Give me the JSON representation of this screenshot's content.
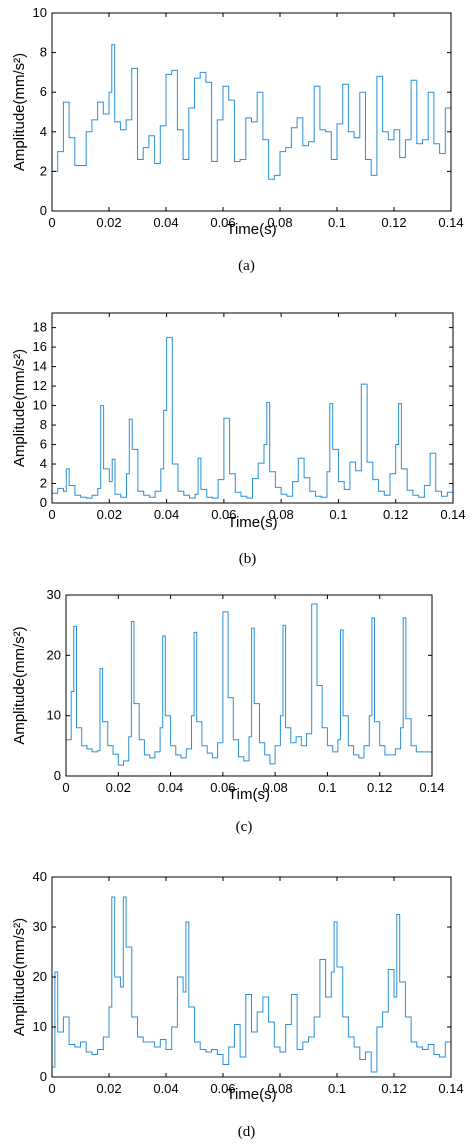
{
  "colors": {
    "line": "#2b8fd6",
    "axis": "#000000"
  },
  "chart_data": [
    {
      "type": "line",
      "caption": "(a)",
      "xlabel": "Time(s)",
      "ylabel": "Amplitude(mm/s²)",
      "xlim": [
        0,
        0.14
      ],
      "ylim": [
        0,
        10
      ],
      "xticks": [
        "0",
        "0.02",
        "0.04",
        "0.06",
        "0.08",
        "0.1",
        "0.12",
        "0.14"
      ],
      "yticks": [
        "0",
        "2",
        "4",
        "6",
        "8",
        "10"
      ],
      "grid": false,
      "series": [
        {
          "x": [
            0,
            0.002,
            0.004,
            0.006,
            0.008,
            0.01,
            0.012,
            0.014,
            0.016,
            0.018,
            0.02,
            0.021,
            0.022,
            0.024,
            0.026,
            0.028,
            0.03,
            0.032,
            0.034,
            0.036,
            0.038,
            0.04,
            0.042,
            0.044,
            0.046,
            0.048,
            0.05,
            0.052,
            0.054,
            0.056,
            0.058,
            0.06,
            0.062,
            0.064,
            0.066,
            0.068,
            0.07,
            0.072,
            0.074,
            0.076,
            0.078,
            0.08,
            0.082,
            0.084,
            0.086,
            0.088,
            0.09,
            0.092,
            0.094,
            0.096,
            0.098,
            0.1,
            0.102,
            0.104,
            0.106,
            0.108,
            0.11,
            0.112,
            0.114,
            0.116,
            0.118,
            0.12,
            0.122,
            0.124,
            0.126,
            0.128,
            0.13,
            0.132,
            0.134,
            0.136,
            0.138,
            0.14
          ],
          "values": [
            2.0,
            3.0,
            5.5,
            3.7,
            2.3,
            2.3,
            4.0,
            4.6,
            5.5,
            4.9,
            6.0,
            8.4,
            4.5,
            4.1,
            4.6,
            7.2,
            2.6,
            3.2,
            3.8,
            2.4,
            4.3,
            6.9,
            7.1,
            4.1,
            2.6,
            5.2,
            6.7,
            7.0,
            6.5,
            2.5,
            4.6,
            6.3,
            5.6,
            2.5,
            2.6,
            4.7,
            4.5,
            6.0,
            3.6,
            1.6,
            1.8,
            3.0,
            3.2,
            4.2,
            4.7,
            3.3,
            3.5,
            6.3,
            4.1,
            4.0,
            2.6,
            4.4,
            6.4,
            4.0,
            3.7,
            6.0,
            2.6,
            1.8,
            6.8,
            4.0,
            3.6,
            4.1,
            2.7,
            3.6,
            6.6,
            3.4,
            3.6,
            6.0,
            3.4,
            2.9,
            5.2,
            3.9
          ]
        }
      ]
    },
    {
      "type": "line",
      "caption": "(b)",
      "xlabel": "Time(s)",
      "ylabel": "Amplitude(mm/s²)",
      "xlim": [
        0,
        0.14
      ],
      "ylim": [
        0,
        19.5
      ],
      "xticks": [
        "0",
        "0.02",
        "0.04",
        "0.06",
        "0.08",
        "0.1",
        "0.12",
        "0.14"
      ],
      "yticks": [
        "0",
        "2",
        "4",
        "6",
        "8",
        "10",
        "12",
        "14",
        "16",
        "18"
      ],
      "grid": false,
      "series": [
        {
          "x": [
            0,
            0.002,
            0.004,
            0.005,
            0.006,
            0.008,
            0.01,
            0.012,
            0.014,
            0.016,
            0.017,
            0.018,
            0.02,
            0.021,
            0.022,
            0.024,
            0.026,
            0.027,
            0.028,
            0.03,
            0.032,
            0.034,
            0.036,
            0.038,
            0.039,
            0.04,
            0.042,
            0.044,
            0.046,
            0.048,
            0.05,
            0.051,
            0.052,
            0.054,
            0.056,
            0.058,
            0.06,
            0.062,
            0.064,
            0.066,
            0.068,
            0.07,
            0.072,
            0.074,
            0.075,
            0.076,
            0.078,
            0.08,
            0.082,
            0.084,
            0.086,
            0.088,
            0.09,
            0.092,
            0.094,
            0.096,
            0.097,
            0.098,
            0.1,
            0.102,
            0.104,
            0.106,
            0.108,
            0.11,
            0.112,
            0.114,
            0.116,
            0.118,
            0.12,
            0.121,
            0.122,
            0.124,
            0.126,
            0.128,
            0.13,
            0.132,
            0.134,
            0.136,
            0.138,
            0.14
          ],
          "values": [
            1.0,
            1.5,
            1.2,
            3.5,
            1.8,
            0.8,
            0.6,
            0.5,
            0.8,
            1.5,
            10.0,
            3.5,
            2.2,
            4.5,
            0.9,
            0.6,
            3.0,
            8.6,
            5.5,
            1.2,
            0.8,
            0.6,
            1.2,
            3.5,
            9.5,
            17.0,
            4.0,
            1.2,
            0.8,
            0.5,
            0.9,
            4.6,
            1.4,
            0.6,
            0.5,
            2.4,
            8.7,
            3.0,
            1.1,
            0.7,
            0.5,
            2.5,
            4.1,
            6.0,
            10.3,
            3.2,
            1.6,
            0.9,
            0.7,
            2.2,
            4.6,
            2.6,
            1.2,
            0.7,
            0.6,
            3.2,
            10.2,
            5.5,
            2.2,
            1.4,
            4.2,
            3.3,
            12.2,
            4.2,
            2.4,
            1.2,
            0.8,
            3.0,
            6.0,
            10.2,
            3.5,
            1.3,
            0.8,
            0.6,
            1.8,
            5.1,
            1.2,
            0.7,
            1.1,
            1.4
          ]
        }
      ]
    },
    {
      "type": "line",
      "caption": "(c)",
      "xlabel": "Tim(s)",
      "ylabel": "Amplitude(mm/s²)",
      "xlim": [
        0,
        0.14
      ],
      "ylim": [
        0,
        30
      ],
      "xticks": [
        "0",
        "0.02",
        "0.04",
        "0.06",
        "0.08",
        "0.1",
        "0.12",
        "0.14"
      ],
      "yticks": [
        "0",
        "10",
        "20",
        "30"
      ],
      "grid": false,
      "series": [
        {
          "x": [
            0,
            0.002,
            0.003,
            0.004,
            0.006,
            0.008,
            0.01,
            0.012,
            0.013,
            0.014,
            0.016,
            0.018,
            0.02,
            0.022,
            0.024,
            0.025,
            0.026,
            0.028,
            0.03,
            0.032,
            0.034,
            0.036,
            0.037,
            0.038,
            0.04,
            0.042,
            0.044,
            0.046,
            0.048,
            0.049,
            0.05,
            0.052,
            0.054,
            0.056,
            0.058,
            0.06,
            0.062,
            0.064,
            0.066,
            0.068,
            0.07,
            0.071,
            0.072,
            0.074,
            0.076,
            0.078,
            0.08,
            0.082,
            0.083,
            0.084,
            0.086,
            0.088,
            0.09,
            0.092,
            0.094,
            0.096,
            0.098,
            0.1,
            0.102,
            0.104,
            0.105,
            0.106,
            0.108,
            0.11,
            0.112,
            0.114,
            0.116,
            0.117,
            0.118,
            0.12,
            0.122,
            0.124,
            0.126,
            0.128,
            0.129,
            0.13,
            0.132,
            0.134,
            0.136,
            0.138,
            0.14
          ],
          "values": [
            6.0,
            14.0,
            24.8,
            8.0,
            5.0,
            4.5,
            4.0,
            4.2,
            17.8,
            9.0,
            5.0,
            3.6,
            1.8,
            2.5,
            6.5,
            25.6,
            12.0,
            6.0,
            3.5,
            3.0,
            4.0,
            8.0,
            23.2,
            10.0,
            5.0,
            3.5,
            3.0,
            4.5,
            10.0,
            23.8,
            9.0,
            5.0,
            3.8,
            3.0,
            5.5,
            27.2,
            13.0,
            6.0,
            3.2,
            2.5,
            6.5,
            24.5,
            12.0,
            5.5,
            3.5,
            2.0,
            5.0,
            10.0,
            25.0,
            8.0,
            5.5,
            6.5,
            5.0,
            7.0,
            28.5,
            15.0,
            8.0,
            5.0,
            4.0,
            6.0,
            24.2,
            10.0,
            5.0,
            3.5,
            3.0,
            5.0,
            10.0,
            26.2,
            9.0,
            5.0,
            3.5,
            3.5,
            4.5,
            8.0,
            26.2,
            9.5,
            5.0,
            4.0,
            4.0,
            4.0,
            10.0
          ]
        }
      ]
    },
    {
      "type": "line",
      "caption": "(d)",
      "xlabel": "Time(s)",
      "ylabel": "Amplitude(mm/s²)",
      "xlim": [
        0,
        0.14
      ],
      "ylim": [
        0,
        40
      ],
      "xticks": [
        "0",
        "0.02",
        "0.04",
        "0.06",
        "0.08",
        "0.1",
        "0.12",
        "0.14"
      ],
      "yticks": [
        "0",
        "10",
        "20",
        "30",
        "40"
      ],
      "grid": false,
      "series": [
        {
          "x": [
            0,
            0.001,
            0.002,
            0.004,
            0.006,
            0.008,
            0.01,
            0.012,
            0.014,
            0.016,
            0.018,
            0.02,
            0.021,
            0.022,
            0.024,
            0.025,
            0.026,
            0.028,
            0.03,
            0.032,
            0.034,
            0.036,
            0.038,
            0.04,
            0.042,
            0.044,
            0.046,
            0.047,
            0.048,
            0.05,
            0.052,
            0.054,
            0.056,
            0.058,
            0.06,
            0.062,
            0.064,
            0.066,
            0.068,
            0.07,
            0.072,
            0.074,
            0.076,
            0.078,
            0.08,
            0.082,
            0.084,
            0.086,
            0.088,
            0.09,
            0.092,
            0.094,
            0.096,
            0.098,
            0.099,
            0.1,
            0.102,
            0.104,
            0.106,
            0.108,
            0.11,
            0.112,
            0.114,
            0.116,
            0.118,
            0.12,
            0.121,
            0.122,
            0.124,
            0.126,
            0.128,
            0.13,
            0.132,
            0.134,
            0.136,
            0.138,
            0.14
          ],
          "values": [
            2.0,
            21.0,
            9.0,
            12.0,
            6.5,
            6.0,
            7.0,
            5.0,
            4.5,
            5.5,
            8.0,
            14.0,
            36.0,
            20.0,
            18.0,
            36.0,
            26.0,
            12.0,
            8.0,
            7.0,
            7.0,
            6.0,
            7.5,
            5.5,
            10.0,
            20.0,
            17.0,
            31.0,
            14.0,
            7.0,
            5.5,
            5.0,
            5.5,
            4.5,
            2.5,
            6.0,
            10.5,
            4.0,
            16.5,
            9.0,
            13.0,
            16.0,
            11.0,
            6.0,
            5.0,
            10.5,
            16.5,
            5.5,
            7.0,
            8.0,
            12.0,
            23.5,
            16.0,
            21.0,
            31.0,
            22.0,
            12.0,
            8.0,
            6.0,
            3.5,
            5.0,
            1.0,
            10.0,
            13.0,
            21.5,
            16.0,
            32.5,
            19.0,
            12.0,
            7.0,
            6.0,
            5.5,
            6.5,
            4.5,
            4.0,
            7.0,
            18.5
          ]
        }
      ]
    }
  ]
}
